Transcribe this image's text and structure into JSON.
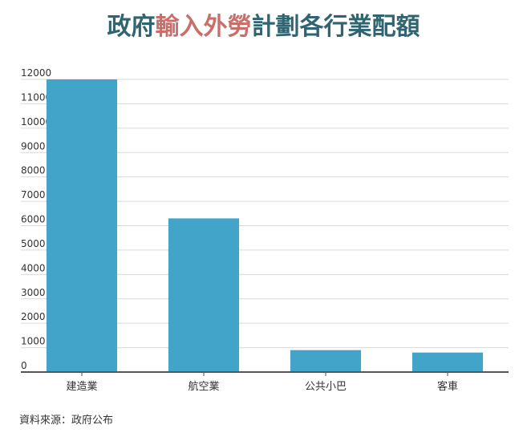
{
  "title": {
    "part1": "政府",
    "part2": "輸入外勞",
    "part3": "計劃各行業配額",
    "color_dark": "#2f6470",
    "color_accent": "#c86f6c"
  },
  "source": "資料來源：政府公布",
  "chart_data": {
    "type": "bar",
    "title": "政府輸入外勞計劃各行業配額",
    "xlabel": "",
    "ylabel": "",
    "categories": [
      "建造業",
      "航空業",
      "公共小巴",
      "客車"
    ],
    "values": [
      12000,
      6300,
      900,
      800
    ],
    "ylim": [
      0,
      12000
    ],
    "yticks": [
      0,
      1000,
      2000,
      3000,
      4000,
      5000,
      6000,
      7000,
      8000,
      9000,
      10000,
      11000,
      12000
    ],
    "grid": true,
    "bar_color": "#41a4c8",
    "grid_color": "#d9d9d9",
    "axis_color": "#555555"
  }
}
